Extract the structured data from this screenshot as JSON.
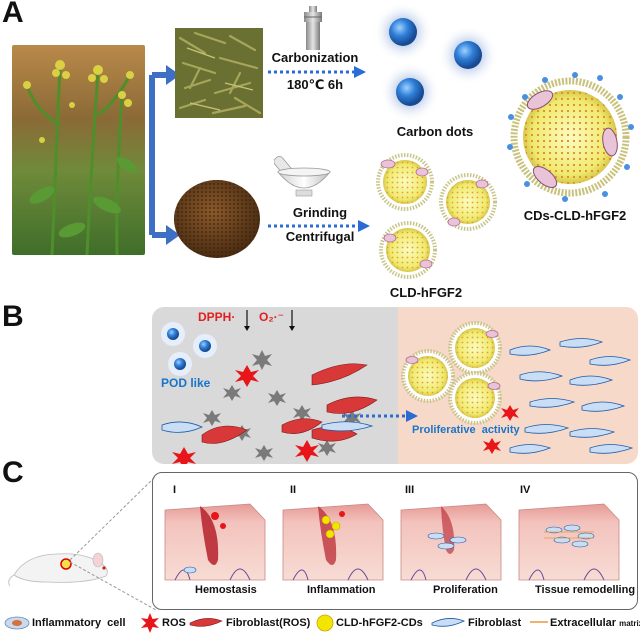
{
  "panels": {
    "a": "A",
    "b": "B",
    "c": "C"
  },
  "panel_a": {
    "carbonization_label": "Carbonization",
    "carbonization_condition": "180℃ 6h",
    "carbon_dots_label": "Carbon dots",
    "grinding_label": "Grinding",
    "centrifugal_label": "Centrifugal",
    "cld_label": "CLD-hFGF2",
    "composite_label": "CDs-CLD-hFGF2"
  },
  "panel_b": {
    "dpph_label": "DPPH·",
    "o2_label": "O₂·⁻",
    "pod_label": "POD like",
    "proliferative_label": "Proliferative  activity"
  },
  "panel_c": {
    "stages": [
      {
        "roman": "I",
        "title": "Hemostasis"
      },
      {
        "roman": "II",
        "title": "Inflammation"
      },
      {
        "roman": "III",
        "title": "Proliferation"
      },
      {
        "roman": "IV",
        "title": "Tissue remodelling"
      }
    ]
  },
  "legend": {
    "inflammatory": "Inflammatory  cell",
    "ros": "ROS",
    "fibroblast_ros": "Fibroblast(ROS)",
    "cld_cds": "CLD-hFGF2-CDs",
    "fibroblast": "Fibroblast",
    "ecm": "Extracellular",
    "ecm_sub": "matrix"
  },
  "colors": {
    "arrow_blue": "#3d6fc4",
    "dot_blue": "#2a6fd0",
    "ros_red": "#e8151b",
    "panel_b_left": "#d9d9d9",
    "panel_b_right": "#f6d9c8",
    "vesicle_yellow": "#f3f08a",
    "skin_pink": "#f0b7b0"
  }
}
